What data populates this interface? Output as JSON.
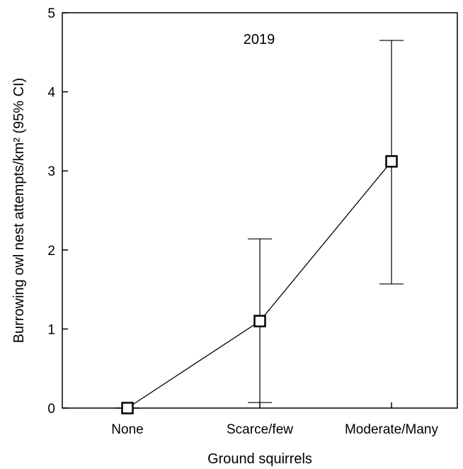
{
  "chart_data": {
    "type": "line",
    "title": "",
    "annotation": "2019",
    "xlabel": "Ground squirrels",
    "ylabel": "Burrowing owl nest attempts/km² (95% CI)",
    "categories": [
      "None",
      "Scarce/few",
      "Moderate/Many"
    ],
    "series": [
      {
        "values": [
          0,
          1.1,
          3.12
        ],
        "ci_lower": [
          0,
          0.07,
          1.57
        ],
        "ci_upper": [
          0,
          2.14,
          4.65
        ]
      }
    ],
    "ylim": [
      0,
      5
    ],
    "yticks": [
      0,
      1,
      2,
      3,
      4,
      5
    ],
    "yticklabels": [
      "0",
      "1",
      "2",
      "3",
      "4",
      "5"
    ],
    "grid": false,
    "marker": "open-square",
    "colors": {
      "line": "#000000"
    }
  }
}
